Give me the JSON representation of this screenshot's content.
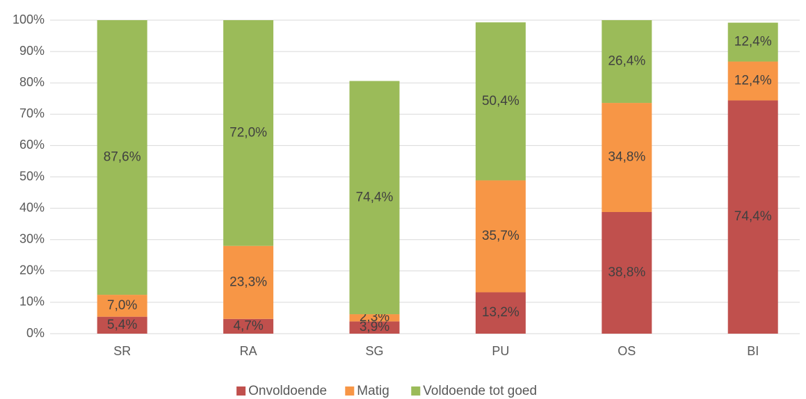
{
  "chart_data": {
    "type": "stacked_bar",
    "categories": [
      "SR",
      "RA",
      "SG",
      "PU",
      "OS",
      "BI"
    ],
    "series": [
      {
        "name": "Onvoldoende",
        "color": "#c0504d",
        "values": [
          5.4,
          4.7,
          3.9,
          13.2,
          38.8,
          74.4
        ],
        "value_labels": [
          "5,4%",
          "4,7%",
          "3,9%",
          "13,2%",
          "38,8%",
          "74,4%"
        ]
      },
      {
        "name": "Matig",
        "color": "#f79646",
        "values": [
          7.0,
          23.3,
          2.3,
          35.7,
          34.8,
          12.4
        ],
        "value_labels": [
          "7,0%",
          "23,3%",
          "2,3%",
          "35,7%",
          "34,8%",
          "12,4%"
        ]
      },
      {
        "name": "Voldoende tot goed",
        "color": "#9bbb59",
        "values": [
          87.6,
          72.0,
          74.4,
          50.4,
          26.4,
          12.4
        ],
        "value_labels": [
          "87,6%",
          "72,0%",
          "74,4%",
          "50,4%",
          "26,4%",
          "12,4%"
        ]
      }
    ],
    "ylim": [
      0,
      100
    ],
    "yticks": [
      {
        "value": 0,
        "label": "0%"
      },
      {
        "value": 10,
        "label": "10%"
      },
      {
        "value": 20,
        "label": "20%"
      },
      {
        "value": 30,
        "label": "30%"
      },
      {
        "value": 40,
        "label": "40%"
      },
      {
        "value": 50,
        "label": "50%"
      },
      {
        "value": 60,
        "label": "60%"
      },
      {
        "value": 70,
        "label": "70%"
      },
      {
        "value": 80,
        "label": "80%"
      },
      {
        "value": 90,
        "label": "90%"
      },
      {
        "value": 100,
        "label": "100%"
      }
    ],
    "grid": true,
    "legend": "bottom"
  }
}
